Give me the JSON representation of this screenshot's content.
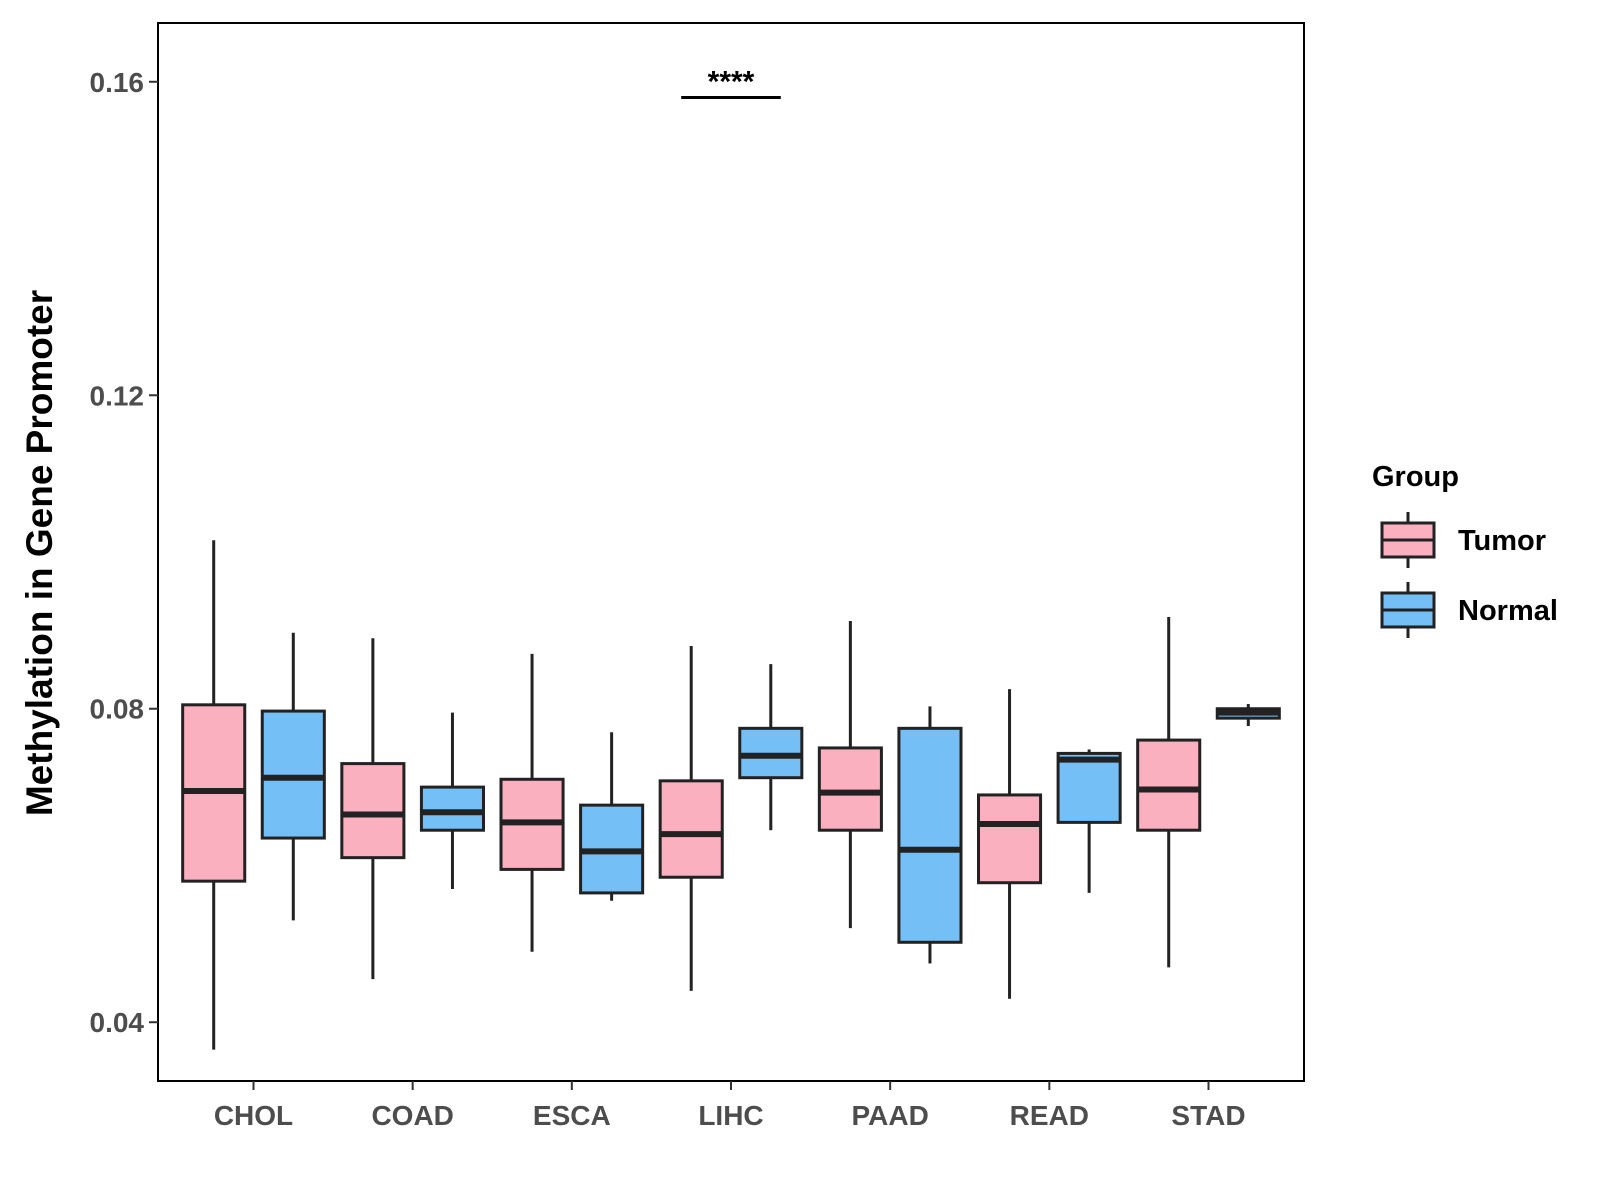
{
  "chart_data": {
    "type": "boxplot",
    "title": "",
    "xlabel": "",
    "ylabel": "Methylation in Gene Promoter",
    "ylim": [
      0.0325,
      0.1675
    ],
    "yticks": [
      0.04,
      0.08,
      0.12,
      0.16
    ],
    "ytick_labels": [
      "0.04",
      "0.08",
      "0.12",
      "0.16"
    ],
    "categories": [
      "CHOL",
      "COAD",
      "ESCA",
      "LIHC",
      "PAAD",
      "READ",
      "STAD"
    ],
    "legend": {
      "title": "Group",
      "position": "right"
    },
    "colors": {
      "Tumor": "#fbb0c0",
      "Normal": "#75bff7",
      "outline": "#222222"
    },
    "series": [
      {
        "name": "Tumor",
        "boxes": [
          {
            "category": "CHOL",
            "whisker_low": 0.0365,
            "q1": 0.058,
            "median": 0.0695,
            "q3": 0.0805,
            "whisker_high": 0.1015
          },
          {
            "category": "COAD",
            "whisker_low": 0.0455,
            "q1": 0.061,
            "median": 0.0665,
            "q3": 0.073,
            "whisker_high": 0.089
          },
          {
            "category": "ESCA",
            "whisker_low": 0.049,
            "q1": 0.0595,
            "median": 0.0655,
            "q3": 0.071,
            "whisker_high": 0.087
          },
          {
            "category": "LIHC",
            "whisker_low": 0.044,
            "q1": 0.0585,
            "median": 0.064,
            "q3": 0.0708,
            "whisker_high": 0.088
          },
          {
            "category": "PAAD",
            "whisker_low": 0.052,
            "q1": 0.0645,
            "median": 0.0693,
            "q3": 0.075,
            "whisker_high": 0.0912
          },
          {
            "category": "READ",
            "whisker_low": 0.043,
            "q1": 0.0578,
            "median": 0.0653,
            "q3": 0.069,
            "whisker_high": 0.0825
          },
          {
            "category": "STAD",
            "whisker_low": 0.047,
            "q1": 0.0645,
            "median": 0.0697,
            "q3": 0.076,
            "whisker_high": 0.0917
          }
        ]
      },
      {
        "name": "Normal",
        "boxes": [
          {
            "category": "CHOL",
            "whisker_low": 0.053,
            "q1": 0.0635,
            "median": 0.0712,
            "q3": 0.0797,
            "whisker_high": 0.0897
          },
          {
            "category": "COAD",
            "whisker_low": 0.057,
            "q1": 0.0645,
            "median": 0.0668,
            "q3": 0.07,
            "whisker_high": 0.0795
          },
          {
            "category": "ESCA",
            "whisker_low": 0.0555,
            "q1": 0.0565,
            "median": 0.0618,
            "q3": 0.0677,
            "whisker_high": 0.077
          },
          {
            "category": "LIHC",
            "whisker_low": 0.0645,
            "q1": 0.0712,
            "median": 0.074,
            "q3": 0.0775,
            "whisker_high": 0.0857
          },
          {
            "category": "PAAD",
            "whisker_low": 0.0475,
            "q1": 0.0502,
            "median": 0.062,
            "q3": 0.0775,
            "whisker_high": 0.0803
          },
          {
            "category": "READ",
            "whisker_low": 0.0565,
            "q1": 0.0655,
            "median": 0.0735,
            "q3": 0.0743,
            "whisker_high": 0.0748
          },
          {
            "category": "STAD",
            "whisker_low": 0.0778,
            "q1": 0.0788,
            "median": 0.0795,
            "q3": 0.08,
            "whisker_high": 0.0806
          }
        ]
      }
    ],
    "annotations": [
      {
        "category": "LIHC",
        "text": "****",
        "y": 0.158
      }
    ]
  }
}
